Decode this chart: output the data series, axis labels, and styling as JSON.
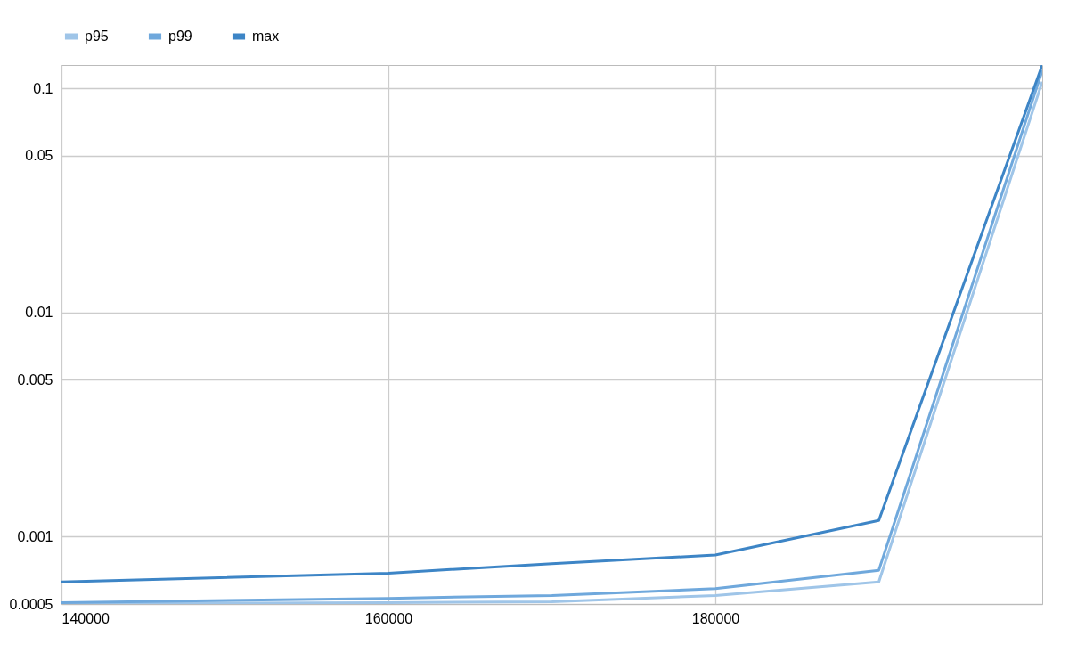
{
  "chart_data": {
    "type": "line",
    "x": [
      140000,
      160000,
      170000,
      180000,
      190000,
      200000
    ],
    "series": [
      {
        "name": "p95",
        "color": "#9fc5e8",
        "values": [
          0.000502,
          0.000507,
          0.000512,
          0.000546,
          0.000627,
          0.107
        ]
      },
      {
        "name": "p99",
        "color": "#6fa8dc",
        "values": [
          0.000507,
          0.00053,
          0.000546,
          0.000585,
          0.000707,
          0.12
        ]
      },
      {
        "name": "max",
        "color": "#3d85c6",
        "values": [
          0.000627,
          0.000686,
          0.000757,
          0.000827,
          0.00118,
          0.127
        ]
      }
    ],
    "xlim": [
      140000,
      200000
    ],
    "xticks": [
      140000,
      160000,
      180000
    ],
    "ylim": [
      0.0005,
      0.127
    ],
    "yticks": [
      0.0005,
      0.001,
      0.005,
      0.01,
      0.05,
      0.1
    ],
    "log": "y",
    "grid": true,
    "legend": "top",
    "marker": "none",
    "line_style": "solid"
  }
}
